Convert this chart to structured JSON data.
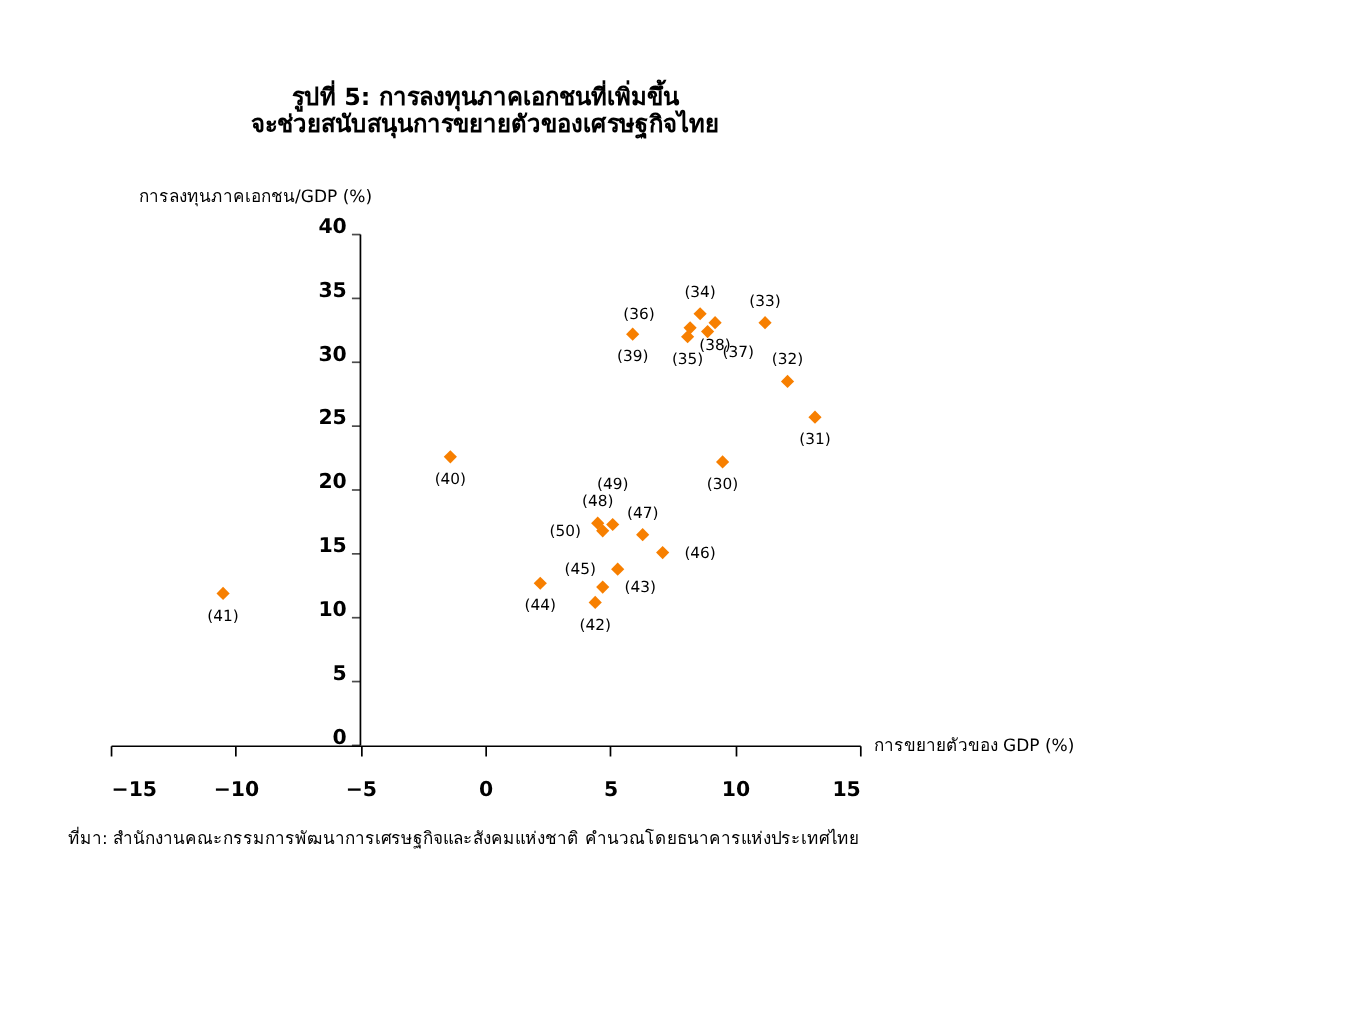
{
  "chart_data": {
    "type": "scatter",
    "title": [
      "รูปที่ 5: การลงทุนภาคเอกชนที่เพิ่มขึ้น",
      "จะช่วยสนับสนุนการขยายตัวของเศรษฐกิจไทย"
    ],
    "xlabel": "การขยายตัวของ GDP (%)",
    "ylabel": "การลงทุนภาคเอกชน/GDP (%)",
    "x": [
      9.5,
      13.2,
      12.1,
      11.2,
      8.6,
      8.1,
      8.2,
      8.9,
      9.2,
      5.9,
      -1.4,
      -10.5,
      4.4,
      4.7,
      2.2,
      5.3,
      7.1,
      6.3,
      4.5,
      5.1,
      4.7
    ],
    "series": [
      {
        "color": "#f77f00",
        "values": [
          22.2,
          25.7,
          28.5,
          33.1,
          33.8,
          32.0,
          32.7,
          32.4,
          33.1,
          32.2,
          22.6,
          11.9,
          11.2,
          12.4,
          12.7,
          13.8,
          15.1,
          16.5,
          17.4,
          17.3,
          16.8
        ]
      }
    ],
    "xlim": [
      -15,
      15
    ],
    "xticks": [
      -15,
      -10,
      -5,
      0,
      5,
      10,
      15
    ],
    "ylim": [
      0,
      40
    ],
    "yticks": [
      0,
      5,
      10,
      15,
      20,
      25,
      30,
      35,
      40
    ],
    "grid": false,
    "legend": false,
    "marker": "diamond",
    "annotations": [
      {
        "text": "(30)",
        "x": 9.5,
        "y": 22.2
      },
      {
        "text": "(31)",
        "x": 13.2,
        "y": 25.7
      },
      {
        "text": "(32)",
        "x": 12.1,
        "y": 28.5
      },
      {
        "text": "(33)",
        "x": 11.2,
        "y": 33.1
      },
      {
        "text": "(34)",
        "x": 8.6,
        "y": 33.8
      },
      {
        "text": "(35)",
        "x": 8.1,
        "y": 32.0
      },
      {
        "text": "(36)",
        "x": 8.2,
        "y": 32.7
      },
      {
        "text": "(37)",
        "x": 8.9,
        "y": 32.4
      },
      {
        "text": "(38)",
        "x": 9.2,
        "y": 33.1
      },
      {
        "text": "(39)",
        "x": 5.9,
        "y": 32.2
      },
      {
        "text": "(40)",
        "x": -1.4,
        "y": 22.6
      },
      {
        "text": "(41)",
        "x": -10.5,
        "y": 11.9
      },
      {
        "text": "(42)",
        "x": 4.4,
        "y": 11.2
      },
      {
        "text": "(43)",
        "x": 4.7,
        "y": 12.4
      },
      {
        "text": "(44)",
        "x": 2.2,
        "y": 12.7
      },
      {
        "text": "(45)",
        "x": 5.3,
        "y": 13.8
      },
      {
        "text": "(46)",
        "x": 7.1,
        "y": 15.1
      },
      {
        "text": "(47)",
        "x": 6.3,
        "y": 16.5
      },
      {
        "text": "(48)",
        "x": 4.5,
        "y": 17.4
      },
      {
        "text": "(49)",
        "x": 5.1,
        "y": 17.3
      },
      {
        "text": "(50)",
        "x": 4.7,
        "y": 16.8
      },
      "ที่มา: สำนักงานคณะกรรมการพัฒนาการเศรษฐกิจและสังคมแห่งชาติ คำนวณโดยธนาคารแห่งประเทศไทย"
    ]
  }
}
